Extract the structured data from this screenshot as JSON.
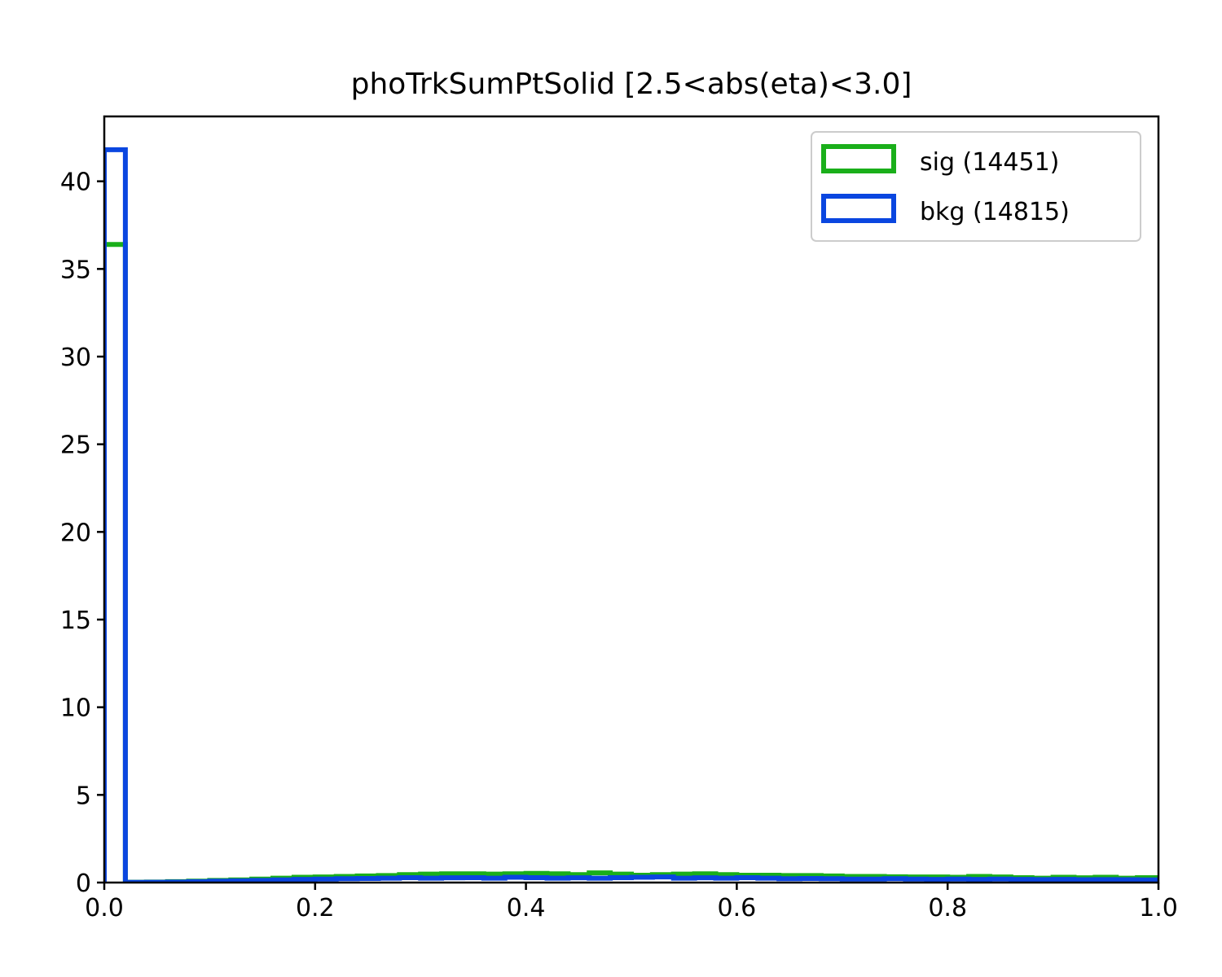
{
  "chart_data": {
    "type": "histogram-step",
    "title": "phoTrkSumPtSolid [2.5<abs(eta)<3.0]",
    "xlabel": "",
    "ylabel": "",
    "xlim": [
      0.0,
      1.0
    ],
    "ylim": [
      0,
      43.7
    ],
    "x_ticks": [
      0.0,
      0.2,
      0.4,
      0.6,
      0.8,
      1.0
    ],
    "x_tick_labels": [
      "0.0",
      "0.2",
      "0.4",
      "0.6",
      "0.8",
      "1.0"
    ],
    "y_ticks": [
      0,
      5,
      10,
      15,
      20,
      25,
      30,
      35,
      40
    ],
    "y_tick_labels": [
      "0",
      "5",
      "10",
      "15",
      "20",
      "25",
      "30",
      "35",
      "40"
    ],
    "grid": false,
    "legend_position": "top-right",
    "bin_edges": [
      0.0,
      0.02,
      0.04,
      0.06,
      0.08,
      0.1,
      0.12,
      0.14,
      0.16,
      0.18,
      0.2,
      0.22,
      0.24,
      0.26,
      0.28,
      0.3,
      0.32,
      0.34,
      0.36,
      0.38,
      0.4,
      0.42,
      0.44,
      0.46,
      0.48,
      0.5,
      0.52,
      0.54,
      0.56,
      0.58,
      0.6,
      0.62,
      0.64,
      0.66,
      0.68,
      0.7,
      0.72,
      0.74,
      0.76,
      0.78,
      0.8,
      0.82,
      0.84,
      0.86,
      0.88,
      0.9,
      0.92,
      0.94,
      0.96,
      0.98,
      1.0
    ],
    "series": [
      {
        "name": "sig (14451)",
        "color": "#1aaf1a",
        "values": [
          36.4,
          0.02,
          0.03,
          0.05,
          0.08,
          0.12,
          0.15,
          0.2,
          0.25,
          0.3,
          0.32,
          0.35,
          0.38,
          0.4,
          0.45,
          0.48,
          0.5,
          0.5,
          0.48,
          0.5,
          0.52,
          0.5,
          0.45,
          0.55,
          0.48,
          0.42,
          0.45,
          0.48,
          0.5,
          0.45,
          0.42,
          0.42,
          0.4,
          0.4,
          0.38,
          0.35,
          0.35,
          0.33,
          0.32,
          0.32,
          0.3,
          0.35,
          0.32,
          0.28,
          0.25,
          0.3,
          0.27,
          0.3,
          0.25,
          0.28
        ]
      },
      {
        "name": "bkg (14815)",
        "color": "#0a46e0",
        "values": [
          41.8,
          0.01,
          0.02,
          0.03,
          0.05,
          0.08,
          0.1,
          0.12,
          0.15,
          0.18,
          0.2,
          0.22,
          0.23,
          0.25,
          0.28,
          0.25,
          0.27,
          0.28,
          0.25,
          0.3,
          0.28,
          0.25,
          0.27,
          0.25,
          0.28,
          0.3,
          0.32,
          0.25,
          0.27,
          0.25,
          0.28,
          0.25,
          0.22,
          0.23,
          0.22,
          0.2,
          0.2,
          0.22,
          0.2,
          0.18,
          0.2,
          0.18,
          0.2,
          0.18,
          0.17,
          0.18,
          0.16,
          0.17,
          0.16,
          0.15
        ]
      }
    ]
  }
}
